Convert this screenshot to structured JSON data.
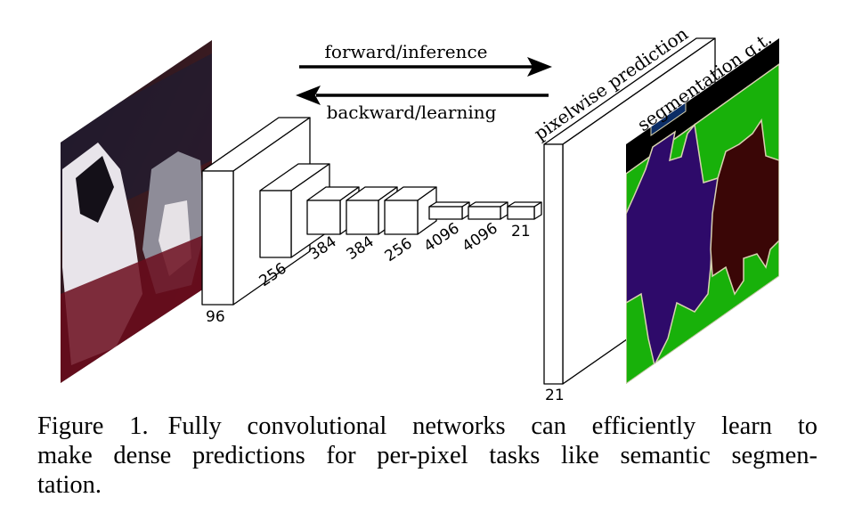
{
  "arrows": {
    "forward_label": "forward/inference",
    "backward_label": "backward/learning"
  },
  "layers": [
    "96",
    "256",
    "384",
    "384",
    "256",
    "4096",
    "4096",
    "21"
  ],
  "prediction": {
    "label": "pixelwise prediction",
    "channels": "21"
  },
  "ground_truth": {
    "label": "segmentation g.t."
  },
  "colors": {
    "seg_background": "#18b10a",
    "seg_dog": "#2e0a6a",
    "seg_cat": "#3a0606",
    "seg_void": "#000000",
    "seg_border": "#d8d2b0",
    "seg_blue": "#0b2d66"
  },
  "caption": {
    "figure": "Figure 1.",
    "line1": "Fully convolutional networks can efficiently learn to",
    "line2": "make dense predictions for per-pixel tasks like semantic segmen-",
    "line3": "tation."
  }
}
